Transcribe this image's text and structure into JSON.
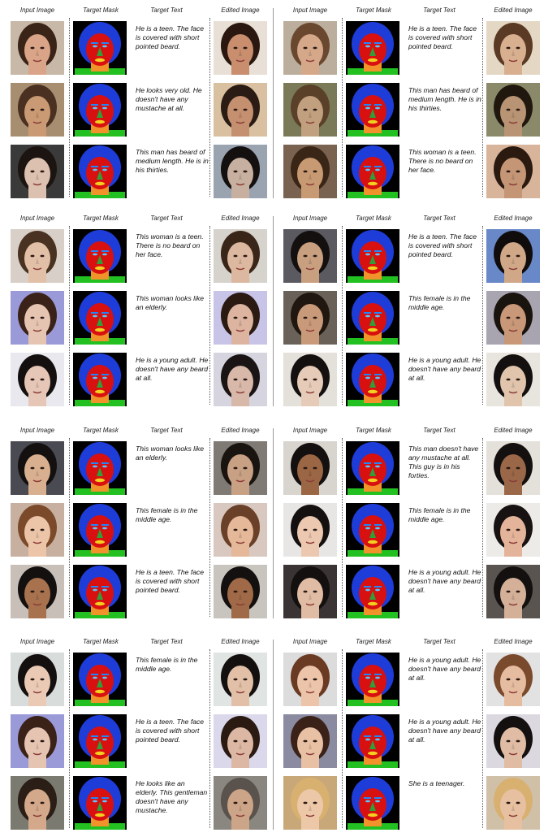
{
  "headers": [
    "Input Image",
    "Target Mask",
    "Target Text",
    "Edited Image"
  ],
  "colors": {
    "mask_background": "#000000",
    "mask_hair": "#1e3cd8",
    "mask_face": "#d81010",
    "mask_nose": "#2ea038",
    "mask_neck": "#f2922a",
    "mask_clothes": "#22c020",
    "mask_brows": "#1e88ff",
    "mask_eyes": "#58c8ff",
    "mask_lips": "#f2d020",
    "separator": "#9a9a9a"
  },
  "blocks": [
    {
      "left": [
        {
          "text": "He is a teen. The face is covered with short pointed beard.",
          "skin": "#d9a487",
          "hair": "#3a2418",
          "bg": "#c8b8a8",
          "edit_skin": "#c88e6e",
          "edit_hair": "#2a1810",
          "edit_bg": "#e8e0d6"
        },
        {
          "text": "He looks very old. He doesn't have any mustache at all.",
          "skin": "#c99a74",
          "hair": "#4a3020",
          "bg": "#a88e70",
          "edit_skin": "#c49070",
          "edit_hair": "#2a1c14",
          "edit_bg": "#d8c0a0"
        },
        {
          "text": "This man has beard of medium length. He is in his thirties.",
          "skin": "#dcc0b0",
          "hair": "#1c1410",
          "bg": "#3a3a3a",
          "edit_skin": "#c8b0a0",
          "edit_hair": "#141010",
          "edit_bg": "#9aa4b0"
        }
      ],
      "right": [
        {
          "text": "He is a teen. The face is covered with short pointed beard.",
          "skin": "#d6a88a",
          "hair": "#6a4830",
          "bg": "#bcae9c",
          "edit_skin": "#d8b090",
          "edit_hair": "#5a3a24",
          "edit_bg": "#e4d8c4"
        },
        {
          "text": "This man has beard of medium length. He is in his thirties.",
          "skin": "#c0a07e",
          "hair": "#5a4028",
          "bg": "#7a7a58",
          "edit_skin": "#b89474",
          "edit_hair": "#20180f",
          "edit_bg": "#8a8a6a"
        },
        {
          "text": "This woman is a teen. There is no beard on her face.",
          "skin": "#c89a74",
          "hair": "#3a2616",
          "bg": "#7a6250",
          "edit_skin": "#c49676",
          "edit_hair": "#2a1a10",
          "edit_bg": "#d8b49a"
        }
      ]
    },
    {
      "left": [
        {
          "text": "This woman is a teen. There is no beard on her face.",
          "skin": "#e2c0a8",
          "hair": "#4a3222",
          "bg": "#d8d0c8",
          "edit_skin": "#dcb8a0",
          "edit_hair": "#3a2618",
          "edit_bg": "#d6d2cc"
        },
        {
          "text": "This woman looks like an elderly.",
          "skin": "#e6c4b2",
          "hair": "#3a2218",
          "bg": "#9a9ad8",
          "edit_skin": "#dcb4a0",
          "edit_hair": "#2a1a12",
          "edit_bg": "#c8c4e8"
        },
        {
          "text": "He is a young adult. He doesn't have any beard at all.",
          "skin": "#e6c6b6",
          "hair": "#141010",
          "bg": "#e8e8ee",
          "edit_skin": "#d8b8a8",
          "edit_hair": "#1a1414",
          "edit_bg": "#d6d4de"
        }
      ],
      "right": [
        {
          "text": "He is a teen. The face is covered with short pointed beard.",
          "skin": "#c8a080",
          "hair": "#141010",
          "bg": "#5a5a60",
          "edit_skin": "#d0a888",
          "edit_hair": "#100c0c",
          "edit_bg": "#6888c8"
        },
        {
          "text": "This female is in the middle age.",
          "skin": "#c89a7a",
          "hair": "#201810",
          "bg": "#6a6258",
          "edit_skin": "#c89878",
          "edit_hair": "#1a140e",
          "edit_bg": "#a8a4b0"
        },
        {
          "text": "He is a young adult. He doesn't have any beard at all.",
          "skin": "#e6ccb8",
          "hair": "#141010",
          "bg": "#e4e0da",
          "edit_skin": "#e0c4ac",
          "edit_hair": "#141010",
          "edit_bg": "#e8e4de"
        }
      ]
    },
    {
      "left": [
        {
          "text": "This woman looks like an elderly.",
          "skin": "#d8b090",
          "hair": "#141010",
          "bg": "#4a4a52",
          "edit_skin": "#c8a084",
          "edit_hair": "#1a1410",
          "edit_bg": "#807a74"
        },
        {
          "text": "This female is in the middle age.",
          "skin": "#ecc4a8",
          "hair": "#7a4a2a",
          "bg": "#c8b0a0",
          "edit_skin": "#e4b898",
          "edit_hair": "#6a4028",
          "edit_bg": "#d8c8c0"
        },
        {
          "text": "He is a teen. The face is covered with short pointed beard.",
          "skin": "#a8724e",
          "hair": "#141010",
          "bg": "#c8c0b8",
          "edit_skin": "#a06a48",
          "edit_hair": "#141010",
          "edit_bg": "#c8c4be"
        }
      ],
      "right": [
        {
          "text": "This man doesn't have any mustache at all. This guy is in his forties.",
          "skin": "#9a6644",
          "hair": "#141010",
          "bg": "#d8d4ce",
          "edit_skin": "#9a6848",
          "edit_hair": "#141010",
          "edit_bg": "#e4e0da"
        },
        {
          "text": "This female is in the middle age.",
          "skin": "#ecc8b0",
          "hair": "#141010",
          "bg": "#e8e6e4",
          "edit_skin": "#e4b49a",
          "edit_hair": "#181212",
          "edit_bg": "#ecebe8"
        },
        {
          "text": "He is a young adult. He doesn't have any beard at all.",
          "skin": "#e0bca4",
          "hair": "#141010",
          "bg": "#3a3434",
          "edit_skin": "#d4b098",
          "edit_hair": "#141010",
          "edit_bg": "#5a5450"
        }
      ]
    },
    {
      "left": [
        {
          "text": "This female is in the middle age.",
          "skin": "#eacab4",
          "hair": "#141010",
          "bg": "#d8dcda",
          "edit_skin": "#e2c0a8",
          "edit_hair": "#141010",
          "edit_bg": "#e0e4e2"
        },
        {
          "text": "He is a teen. The face is covered with short pointed beard.",
          "skin": "#e6c4b2",
          "hair": "#3a2218",
          "bg": "#9a9ad8",
          "edit_skin": "#dcb8a4",
          "edit_hair": "#2a1a12",
          "edit_bg": "#dcd8ec"
        },
        {
          "text": "He looks like an elderly. This gentleman doesn't have any mustache.",
          "skin": "#d4a88a",
          "hair": "#2a1e16",
          "bg": "#7a7a70",
          "edit_skin": "#cca488",
          "edit_hair": "#5a524c",
          "edit_bg": "#8a8680"
        }
      ],
      "right": [
        {
          "text": "He is a young adult. He doesn't have any beard at all.",
          "skin": "#ecc4aa",
          "hair": "#6a3a22",
          "bg": "#dcdcdc",
          "edit_skin": "#e6bca0",
          "edit_hair": "#7a4a2c",
          "edit_bg": "#e2e2e2"
        },
        {
          "text": "He is a young adult. He doesn't have any beard at all.",
          "skin": "#e8c0a4",
          "hair": "#3a2218",
          "bg": "#8a8aa0",
          "edit_skin": "#e0bca4",
          "edit_hair": "#141010",
          "edit_bg": "#dcd8e0"
        },
        {
          "text": "She is a teenager.",
          "skin": "#ecc8a8",
          "hair": "#d8b070",
          "bg": "#c8a878",
          "edit_skin": "#e6c0a0",
          "edit_hair": "#d8b070",
          "edit_bg": "#d0c0a8"
        }
      ]
    }
  ]
}
